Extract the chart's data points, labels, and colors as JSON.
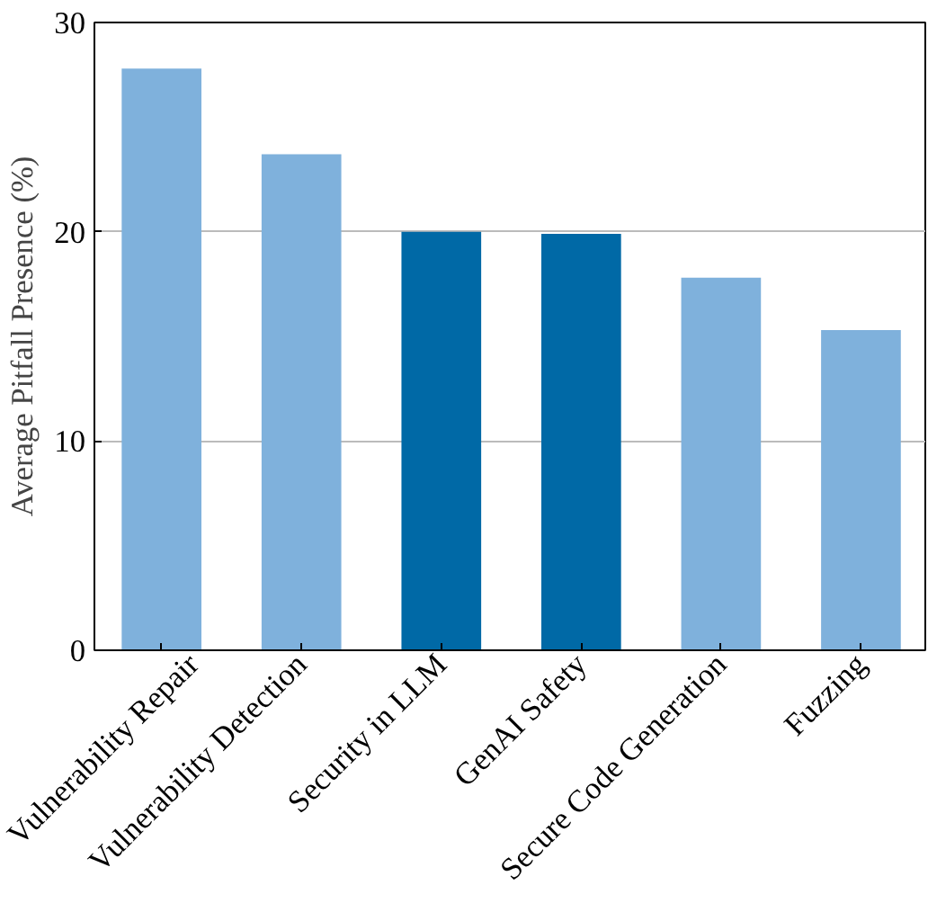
{
  "chart_data": {
    "type": "bar",
    "ylabel": "Average Pitfall Presence (%)",
    "categories": [
      "Vulnerability Repair",
      "Vulnerability Detection",
      "Security in LLM",
      "GenAI Safety",
      "Secure Code Generation",
      "Fuzzing"
    ],
    "values": [
      27.8,
      23.7,
      20.0,
      19.9,
      17.8,
      15.3
    ],
    "colors": [
      "#7fb1dc",
      "#7fb1dc",
      "#0069a6",
      "#0069a6",
      "#7fb1dc",
      "#7fb1dc"
    ],
    "ylim": [
      0,
      30
    ],
    "yticks": [
      0,
      10,
      20,
      30
    ],
    "grid": "y"
  }
}
